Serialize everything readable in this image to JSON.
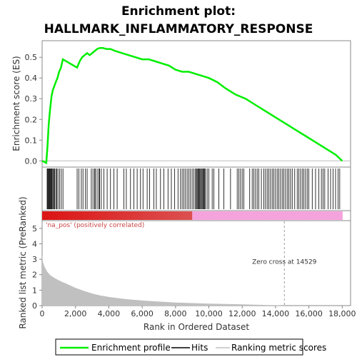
{
  "title_line1": "Enrichment plot:",
  "title_line2": "HALLMARK_INFLAMMATORY_RESPONSE",
  "colors": {
    "es_line": "#00ee00",
    "hits": "#000000",
    "metric_fill": "#c0c0c0",
    "pos_band": "#dd1111",
    "neg_band": "#f5a3dc",
    "pos_label": "#cc4444",
    "zero_line": "#999999"
  },
  "pos_label": "'na_pos' (positively correlated)",
  "zero_cross_label": "Zero cross at 14529",
  "chart_data": [
    {
      "type": "line",
      "name": "enrichment-profile",
      "ylabel": "Enrichment score (ES)",
      "xlim": [
        0,
        18500
      ],
      "ylim": [
        -0.03,
        0.58
      ],
      "yticks": [
        0.0,
        0.1,
        0.2,
        0.3,
        0.4,
        0.5
      ],
      "ytick_labels": [
        "0.0",
        "0.1",
        "0.2",
        "0.3",
        "0.4",
        "0.5"
      ],
      "x": [
        0,
        250,
        320,
        400,
        480,
        560,
        640,
        730,
        820,
        920,
        1020,
        1130,
        1240,
        2100,
        2250,
        2400,
        2550,
        2700,
        2850,
        3000,
        3150,
        3300,
        3450,
        3650,
        3850,
        4100,
        4400,
        4800,
        5200,
        5600,
        6000,
        6400,
        6800,
        7200,
        7600,
        8000,
        8400,
        8800,
        9200,
        9600,
        10000,
        10500,
        11000,
        11600,
        12200,
        12800,
        13400,
        14000,
        14600,
        15200,
        15800,
        16400,
        17000,
        17600,
        18000
      ],
      "y": [
        0.0,
        -0.01,
        0.07,
        0.18,
        0.25,
        0.31,
        0.34,
        0.36,
        0.38,
        0.4,
        0.43,
        0.45,
        0.49,
        0.45,
        0.48,
        0.5,
        0.51,
        0.52,
        0.51,
        0.52,
        0.53,
        0.54,
        0.545,
        0.545,
        0.54,
        0.54,
        0.53,
        0.52,
        0.51,
        0.5,
        0.49,
        0.49,
        0.48,
        0.47,
        0.46,
        0.44,
        0.43,
        0.43,
        0.42,
        0.41,
        0.4,
        0.38,
        0.35,
        0.32,
        0.3,
        0.27,
        0.24,
        0.21,
        0.18,
        0.15,
        0.12,
        0.09,
        0.06,
        0.03,
        0.0
      ]
    },
    {
      "type": "scatter",
      "name": "hits",
      "hit_positions": [
        300,
        340,
        380,
        420,
        450,
        480,
        520,
        560,
        600,
        650,
        700,
        750,
        820,
        880,
        950,
        1050,
        1150,
        1250,
        2100,
        2200,
        2350,
        2450,
        2600,
        2700,
        2950,
        3050,
        3150,
        3200,
        3300,
        3400,
        3450,
        3550,
        3700,
        3900,
        4100,
        4300,
        4500,
        4900,
        5050,
        5300,
        5500,
        5700,
        5900,
        6050,
        6300,
        6450,
        6700,
        6850,
        7100,
        7300,
        7550,
        7750,
        7950,
        8150,
        8300,
        8400,
        8500,
        8600,
        8700,
        8800,
        8900,
        9000,
        9100,
        9200,
        9250,
        9300,
        9350,
        9400,
        9450,
        9500,
        9550,
        9600,
        9650,
        9700,
        9750,
        9800,
        9900,
        10000,
        10200,
        10300,
        10600,
        10900,
        11300,
        11700,
        11800,
        11900,
        12000,
        12100,
        12450,
        12600,
        12700,
        12800,
        12900,
        13000,
        13150,
        13300,
        13400,
        13500,
        13600,
        13700,
        13800,
        13900,
        14000,
        14100,
        14200,
        14300,
        14400,
        14500,
        14600,
        14700,
        14800,
        14900,
        15000,
        15150,
        15300,
        15400,
        15500,
        15600,
        15700,
        15800,
        15900,
        16000,
        16200,
        16400,
        16600,
        16750,
        16850,
        16950,
        17150,
        17300,
        17450,
        17600,
        17750,
        17850
      ]
    },
    {
      "type": "area",
      "name": "ranked-list-metric",
      "ylabel": "Ranked list metric (PreRanked)",
      "xlabel": "Rank in Ordered Dataset",
      "xlim": [
        0,
        18500
      ],
      "ylim": [
        0,
        5.5
      ],
      "xticks": [
        0,
        2000,
        4000,
        6000,
        8000,
        10000,
        12000,
        14000,
        16000,
        18000
      ],
      "xtick_labels": [
        "0",
        "2,000",
        "4,000",
        "6,000",
        "8,000",
        "10,000",
        "12,000",
        "14,000",
        "16,000",
        "18,000"
      ],
      "yticks": [
        0,
        1,
        2,
        3,
        4,
        5
      ],
      "ytick_labels": [
        "0",
        "1",
        "2",
        "3",
        "4",
        "5"
      ],
      "x": [
        0,
        50,
        150,
        300,
        500,
        800,
        1100,
        1500,
        2000,
        2500,
        3000,
        3500,
        4000,
        5000,
        6000,
        7000,
        8000,
        9000,
        10000,
        11000,
        12000,
        13000,
        14000,
        14529,
        14600,
        18000
      ],
      "y": [
        3.3,
        2.8,
        2.5,
        2.2,
        1.95,
        1.75,
        1.58,
        1.4,
        1.15,
        0.95,
        0.78,
        0.65,
        0.56,
        0.42,
        0.33,
        0.26,
        0.2,
        0.16,
        0.13,
        0.1,
        0.08,
        0.05,
        0.03,
        0.0,
        0.0,
        0.0
      ],
      "zero_cross": 14529
    }
  ],
  "legend": {
    "items": [
      "Enrichment profile",
      "Hits",
      "Ranking metric scores"
    ]
  }
}
